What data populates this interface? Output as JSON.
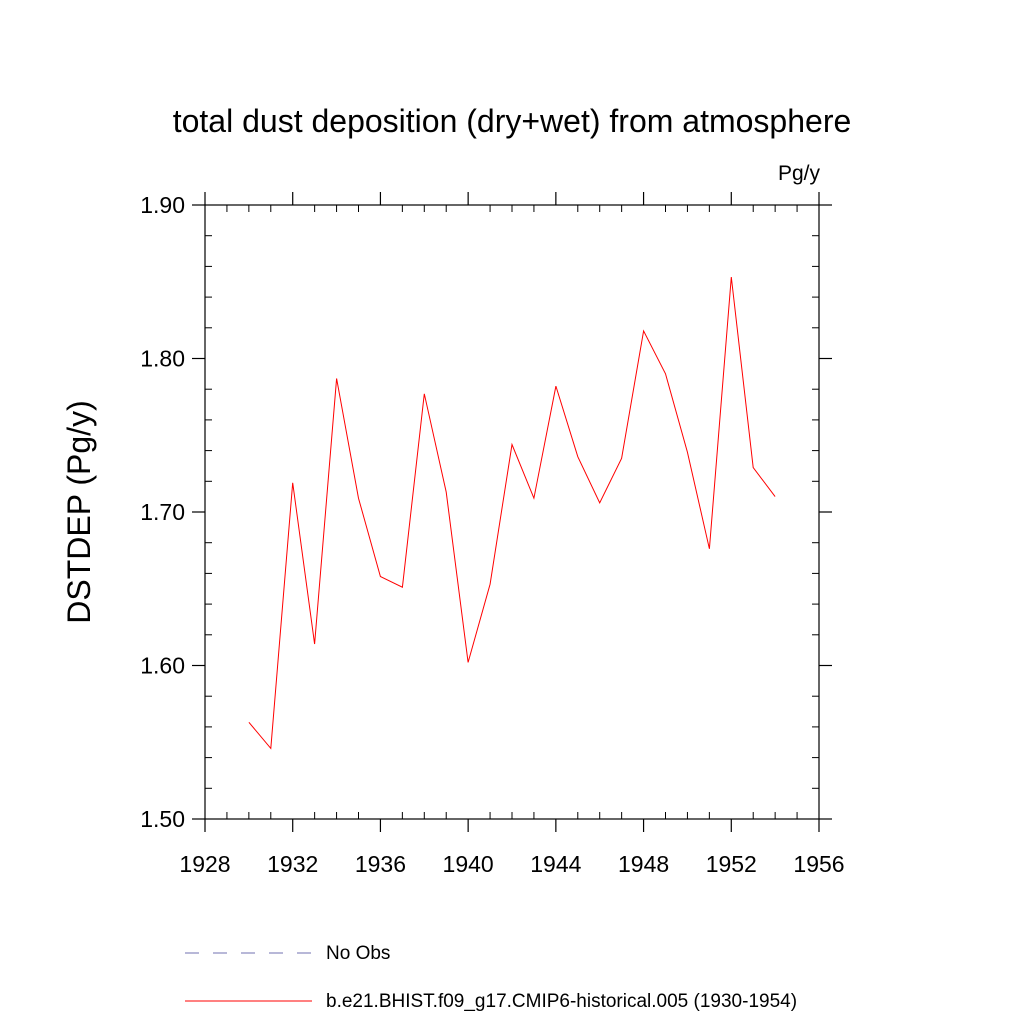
{
  "chart_data": {
    "type": "line",
    "title": "total dust deposition (dry+wet) from atmosphere",
    "units_label": "Pg/y",
    "ylabel": "DSTDEP  (Pg/y)",
    "xlabel": "",
    "xlim": [
      1928,
      1956
    ],
    "ylim": [
      1.5,
      1.9
    ],
    "x_ticks": [
      1928,
      1932,
      1936,
      1940,
      1944,
      1948,
      1952,
      1956
    ],
    "x_tick_labels": [
      "1928",
      "1932",
      "1936",
      "1940",
      "1944",
      "1948",
      "1952",
      "1956"
    ],
    "y_ticks": [
      1.5,
      1.6,
      1.7,
      1.8,
      1.9
    ],
    "y_tick_labels": [
      "1.50",
      "1.60",
      "1.70",
      "1.80",
      "1.90"
    ],
    "grid": false,
    "legend_placement": "bottom",
    "series": [
      {
        "name": "b.e21.BHIST.f09_g17.CMIP6-historical.005 (1930-1954)",
        "color": "#ff0000",
        "style": "solid",
        "x": [
          1930,
          1931,
          1932,
          1933,
          1934,
          1935,
          1936,
          1937,
          1938,
          1939,
          1940,
          1941,
          1942,
          1943,
          1944,
          1945,
          1946,
          1947,
          1948,
          1949,
          1950,
          1951,
          1952,
          1953,
          1954
        ],
        "y": [
          1.563,
          1.546,
          1.719,
          1.614,
          1.787,
          1.709,
          1.658,
          1.651,
          1.777,
          1.713,
          1.602,
          1.653,
          1.744,
          1.709,
          1.782,
          1.736,
          1.706,
          1.735,
          1.818,
          1.79,
          1.739,
          1.676,
          1.853,
          1.729,
          1.71
        ]
      }
    ],
    "legend": [
      {
        "label": "No Obs",
        "color": "#7070b0",
        "style": "dashed"
      },
      {
        "label": "b.e21.BHIST.f09_g17.CMIP6-historical.005 (1930-1954)",
        "color": "#ff0000",
        "style": "solid"
      }
    ]
  }
}
